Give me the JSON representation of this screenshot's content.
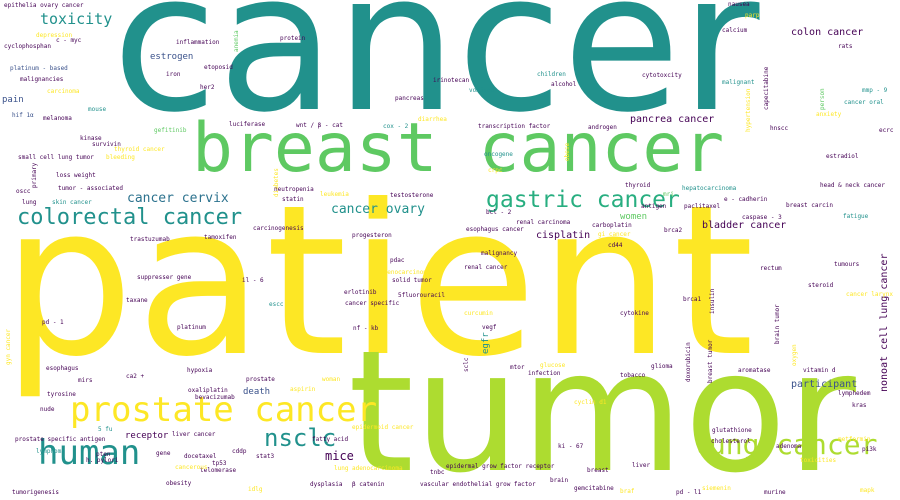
{
  "colors": {
    "teal": "#21918c",
    "green": "#5ec962",
    "lime": "#addc30",
    "yellow": "#fde725",
    "purple": "#440154",
    "indigo": "#3b528b",
    "blue": "#2c728e",
    "seagreen": "#28ae80",
    "bluegreen": "#27ad81"
  },
  "words": [
    {
      "text": "cancer",
      "color": "teal"
    },
    {
      "text": "patient",
      "color": "yellow"
    },
    {
      "text": "tumor",
      "color": "lime"
    },
    {
      "text": "breast cancer",
      "color": "green"
    },
    {
      "text": "prostate cancer",
      "color": "yellow"
    },
    {
      "text": "human",
      "color": "teal"
    },
    {
      "text": "colorectal cancer",
      "color": "teal"
    },
    {
      "text": "lung cancer",
      "color": "lime"
    },
    {
      "text": "gastric cancer",
      "color": "seagreen"
    },
    {
      "text": "nsclc",
      "color": "teal"
    },
    {
      "text": "toxicity",
      "color": "teal"
    },
    {
      "text": "cancer cervix",
      "color": "blue"
    },
    {
      "text": "cancer ovary",
      "color": "teal"
    },
    {
      "text": "colon cancer",
      "color": "purple"
    },
    {
      "text": "pancrea cancer",
      "color": "purple"
    },
    {
      "text": "mice",
      "color": "purple"
    },
    {
      "text": "bladder cancer",
      "color": "purple"
    },
    {
      "text": "participant",
      "color": "indigo"
    },
    {
      "text": "cisplatin",
      "color": "purple"
    },
    {
      "text": "estrogen",
      "color": "indigo"
    },
    {
      "text": "death",
      "color": "indigo"
    },
    {
      "text": "receptor",
      "color": "purple"
    },
    {
      "text": "women",
      "color": "green"
    },
    {
      "text": "pain",
      "color": "indigo"
    },
    {
      "text": "nonoat cell lung cancer",
      "color": "purple"
    },
    {
      "text": "epithelia ovary cancer",
      "color": "purple"
    },
    {
      "text": "c - myc",
      "color": "purple"
    },
    {
      "text": "depression",
      "color": "yellow"
    },
    {
      "text": "cyclophosphan",
      "color": "purple"
    },
    {
      "text": "platinum - based",
      "color": "indigo"
    },
    {
      "text": "malignancies",
      "color": "purple"
    },
    {
      "text": "carcinoma",
      "color": "yellow"
    },
    {
      "text": "hif 1α",
      "color": "indigo"
    },
    {
      "text": "melanoma",
      "color": "purple"
    },
    {
      "text": "mouse",
      "color": "teal"
    },
    {
      "text": "inflammation",
      "color": "purple"
    },
    {
      "text": "etoposid",
      "color": "purple"
    },
    {
      "text": "iron",
      "color": "purple"
    },
    {
      "text": "her2",
      "color": "purple"
    },
    {
      "text": "protein",
      "color": "purple"
    },
    {
      "text": "anemia",
      "color": "green"
    },
    {
      "text": "nausea",
      "color": "purple"
    },
    {
      "text": "parp",
      "color": "yellow"
    },
    {
      "text": "calcium",
      "color": "purple"
    },
    {
      "text": "rats",
      "color": "purple"
    },
    {
      "text": "children",
      "color": "teal"
    },
    {
      "text": "alcohol",
      "color": "purple"
    },
    {
      "text": "irinotecan",
      "color": "purple"
    },
    {
      "text": "vomited",
      "color": "teal"
    },
    {
      "text": "cytotoxcity",
      "color": "purple"
    },
    {
      "text": "malignant",
      "color": "teal"
    },
    {
      "text": "capecitabine",
      "color": "purple"
    },
    {
      "text": "hypertension",
      "color": "yellow"
    },
    {
      "text": "person",
      "color": "green"
    },
    {
      "text": "anxiety",
      "color": "yellow"
    },
    {
      "text": "mmp - 9",
      "color": "teal"
    },
    {
      "text": "cancer oral",
      "color": "teal"
    },
    {
      "text": "ecrc",
      "color": "purple"
    },
    {
      "text": "pancreas",
      "color": "purple"
    },
    {
      "text": "diarrhea",
      "color": "yellow"
    },
    {
      "text": "kinase",
      "color": "purple"
    },
    {
      "text": "gefitinib",
      "color": "green"
    },
    {
      "text": "luciferase",
      "color": "purple"
    },
    {
      "text": "wnt / β - cat",
      "color": "purple"
    },
    {
      "text": "cox - 2",
      "color": "teal"
    },
    {
      "text": "transcription factor",
      "color": "purple"
    },
    {
      "text": "androgen",
      "color": "purple"
    },
    {
      "text": "hnscc",
      "color": "purple"
    },
    {
      "text": "survivin",
      "color": "purple"
    },
    {
      "text": "thyroid cancer",
      "color": "yellow"
    },
    {
      "text": "small cell lung tumor",
      "color": "purple"
    },
    {
      "text": "bleeding",
      "color": "yellow"
    },
    {
      "text": "oncogene",
      "color": "teal"
    },
    {
      "text": "obese",
      "color": "yellow"
    },
    {
      "text": "estradiol",
      "color": "purple"
    },
    {
      "text": "loss weight",
      "color": "purple"
    },
    {
      "text": "primary",
      "color": "purple"
    },
    {
      "text": "crpc",
      "color": "yellow"
    },
    {
      "text": "oscc",
      "color": "purple"
    },
    {
      "text": "tumor - associated",
      "color": "purple"
    },
    {
      "text": "thyroid",
      "color": "purple"
    },
    {
      "text": "hepatocarcinoma",
      "color": "teal"
    },
    {
      "text": "head & neck cancer",
      "color": "purple"
    },
    {
      "text": "diabetes",
      "color": "yellow"
    },
    {
      "text": "neutropenia",
      "color": "purple"
    },
    {
      "text": "statin",
      "color": "purple"
    },
    {
      "text": "leukemia",
      "color": "yellow"
    },
    {
      "text": "testosterone",
      "color": "purple"
    },
    {
      "text": "mri",
      "color": "green"
    },
    {
      "text": "e - cadherin",
      "color": "purple"
    },
    {
      "text": "lung",
      "color": "purple"
    },
    {
      "text": "skin cancer",
      "color": "teal"
    },
    {
      "text": "antigen",
      "color": "purple"
    },
    {
      "text": "paclitaxel",
      "color": "purple"
    },
    {
      "text": "breast carcin",
      "color": "purple"
    },
    {
      "text": "fatigue",
      "color": "teal"
    },
    {
      "text": "caspase - 3",
      "color": "purple"
    },
    {
      "text": "bcl - 2",
      "color": "purple"
    },
    {
      "text": "renal carcinoma",
      "color": "purple"
    },
    {
      "text": "carboplatin",
      "color": "purple"
    },
    {
      "text": "esophagus cancer",
      "color": "purple"
    },
    {
      "text": "gi cancer",
      "color": "yellow"
    },
    {
      "text": "brca2",
      "color": "purple"
    },
    {
      "text": "carcinogenesis",
      "color": "purple"
    },
    {
      "text": "progesteron",
      "color": "purple"
    },
    {
      "text": "trastuzumab",
      "color": "purple"
    },
    {
      "text": "tamoxifen",
      "color": "purple"
    },
    {
      "text": "cd44",
      "color": "purple"
    },
    {
      "text": "malignancy",
      "color": "purple"
    },
    {
      "text": "pdac",
      "color": "purple"
    },
    {
      "text": "adenocarcinoma",
      "color": "yellow"
    },
    {
      "text": "renal cancer",
      "color": "purple"
    },
    {
      "text": "rectum",
      "color": "purple"
    },
    {
      "text": "tumours",
      "color": "purple"
    },
    {
      "text": "suppresser gene",
      "color": "purple"
    },
    {
      "text": "il - 6",
      "color": "purple"
    },
    {
      "text": "solid tumor",
      "color": "purple"
    },
    {
      "text": "erlotinib",
      "color": "purple"
    },
    {
      "text": "5fluorouracil",
      "color": "purple"
    },
    {
      "text": "cancer  specific",
      "color": "purple"
    },
    {
      "text": "steroid",
      "color": "purple"
    },
    {
      "text": "cancer larynx",
      "color": "yellow"
    },
    {
      "text": "taxane",
      "color": "purple"
    },
    {
      "text": "escc",
      "color": "teal"
    },
    {
      "text": "brca1",
      "color": "purple"
    },
    {
      "text": "insulin",
      "color": "purple"
    },
    {
      "text": "brain tumor",
      "color": "purple"
    },
    {
      "text": "pd - 1",
      "color": "purple"
    },
    {
      "text": "curcumin",
      "color": "yellow"
    },
    {
      "text": "cytokine",
      "color": "purple"
    },
    {
      "text": "platinum",
      "color": "purple"
    },
    {
      "text": "nf - kb",
      "color": "purple"
    },
    {
      "text": "vegf",
      "color": "purple"
    },
    {
      "text": "egfr",
      "color": "teal"
    },
    {
      "text": "gyn cancer",
      "color": "yellow"
    },
    {
      "text": "esophagus",
      "color": "purple"
    },
    {
      "text": "mirs",
      "color": "purple"
    },
    {
      "text": "hypoxia",
      "color": "purple"
    },
    {
      "text": "sclc",
      "color": "purple"
    },
    {
      "text": "glucose",
      "color": "yellow"
    },
    {
      "text": "mtor",
      "color": "purple"
    },
    {
      "text": "infection",
      "color": "purple"
    },
    {
      "text": "glioma",
      "color": "purple"
    },
    {
      "text": "doxorubicin",
      "color": "purple"
    },
    {
      "text": "breast tumor",
      "color": "purple"
    },
    {
      "text": "oxygen",
      "color": "yellow"
    },
    {
      "text": "aromatase",
      "color": "purple"
    },
    {
      "text": "vitamin d",
      "color": "purple"
    },
    {
      "text": "lymphedem",
      "color": "purple"
    },
    {
      "text": "kras",
      "color": "purple"
    },
    {
      "text": "ca2 +",
      "color": "purple"
    },
    {
      "text": "prostate",
      "color": "purple"
    },
    {
      "text": "woman",
      "color": "yellow"
    },
    {
      "text": "tobacco",
      "color": "purple"
    },
    {
      "text": "oxaliplatin",
      "color": "purple"
    },
    {
      "text": "bevacizumab",
      "color": "purple"
    },
    {
      "text": "aspirin",
      "color": "yellow"
    },
    {
      "text": "tyrosine",
      "color": "purple"
    },
    {
      "text": "cyclin d1",
      "color": "yellow"
    },
    {
      "text": "nude",
      "color": "purple"
    },
    {
      "text": "5 fu",
      "color": "teal"
    },
    {
      "text": "epidermoid cancer",
      "color": "yellow"
    },
    {
      "text": "liver cancer",
      "color": "purple"
    },
    {
      "text": "fatty acid",
      "color": "purple"
    },
    {
      "text": "glutathione",
      "color": "purple"
    },
    {
      "text": "prostate specific antigen",
      "color": "purple"
    },
    {
      "text": "cholesterol",
      "color": "purple"
    },
    {
      "text": "adenoma",
      "color": "purple"
    },
    {
      "text": "metformin",
      "color": "yellow"
    },
    {
      "text": "lymphoma",
      "color": "teal"
    },
    {
      "text": "cddp",
      "color": "purple"
    },
    {
      "text": "gene",
      "color": "purple"
    },
    {
      "text": "docetaxel",
      "color": "purple"
    },
    {
      "text": "stat3",
      "color": "purple"
    },
    {
      "text": "h. pylori",
      "color": "purple"
    },
    {
      "text": "pten",
      "color": "purple"
    },
    {
      "text": "ki - 67",
      "color": "purple"
    },
    {
      "text": "toxicities",
      "color": "yellow"
    },
    {
      "text": "pi3k",
      "color": "purple"
    },
    {
      "text": "tp53",
      "color": "purple"
    },
    {
      "text": "telomerase",
      "color": "purple"
    },
    {
      "text": "cancerous",
      "color": "yellow"
    },
    {
      "text": "lung adenocarcinoma",
      "color": "yellow"
    },
    {
      "text": "tnbc",
      "color": "purple"
    },
    {
      "text": "epidermal grow factor receptor",
      "color": "purple"
    },
    {
      "text": "breast",
      "color": "purple"
    },
    {
      "text": "liver",
      "color": "purple"
    },
    {
      "text": "obesity",
      "color": "purple"
    },
    {
      "text": "dysplasia",
      "color": "purple"
    },
    {
      "text": "β  catenin",
      "color": "purple"
    },
    {
      "text": "vascular endothelial grow factor",
      "color": "purple"
    },
    {
      "text": "brain",
      "color": "purple"
    },
    {
      "text": "gemcitabine",
      "color": "purple"
    },
    {
      "text": "braf",
      "color": "yellow"
    },
    {
      "text": "pd - l1",
      "color": "purple"
    },
    {
      "text": "siemenin",
      "color": "yellow"
    },
    {
      "text": "murine",
      "color": "purple"
    },
    {
      "text": "mapk",
      "color": "yellow"
    },
    {
      "text": "tumorigenesis",
      "color": "purple"
    },
    {
      "text": "idlg",
      "color": "yellow"
    },
    {
      "text": "sclc",
      "color": "purple"
    }
  ]
}
